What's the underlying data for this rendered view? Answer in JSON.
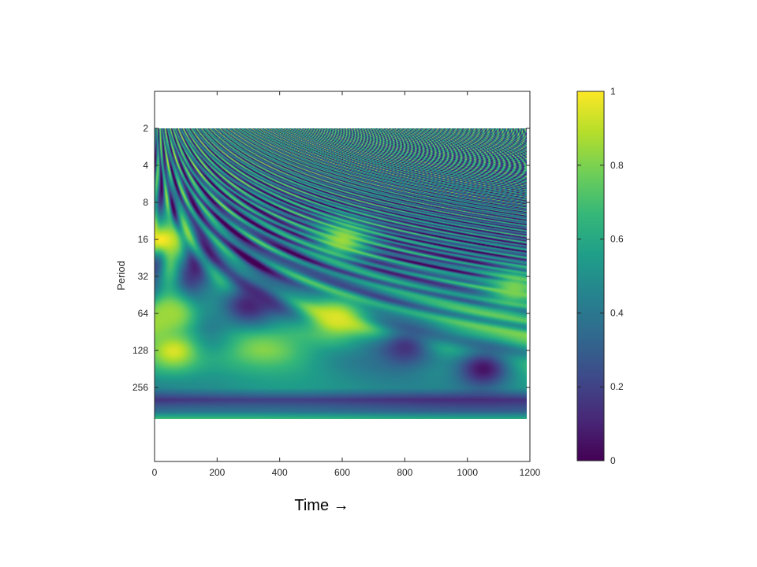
{
  "chart_data": {
    "type": "heatmap",
    "title": "",
    "xlabel": "Time →",
    "ylabel": "Period",
    "xlim": [
      0,
      1200
    ],
    "x_data_max": 1190,
    "x_ticks": [
      0,
      200,
      400,
      600,
      800,
      1000,
      1200
    ],
    "y_scale": "log2",
    "y_reversed": true,
    "y_ticks": [
      2,
      4,
      8,
      16,
      32,
      64,
      128,
      256
    ],
    "ylim": [
      1,
      1024
    ],
    "y_data_range": [
      2,
      464
    ],
    "colorbar": {
      "colormap": "viridis",
      "range": [
        0,
        1
      ],
      "ticks": [
        0,
        0.2,
        0.4,
        0.6,
        0.8,
        1
      ],
      "tick_labels": [
        "0",
        "0.2",
        "0.4",
        "0.6",
        "0.8",
        "1"
      ]
    },
    "colormap_stops": [
      "#440154",
      "#482878",
      "#3e4989",
      "#31688e",
      "#26828e",
      "#1f9e89",
      "#35b779",
      "#6ece58",
      "#b5de2b",
      "#fde725"
    ],
    "bands": [
      {
        "period": 2,
        "level": 0.45,
        "variability": 0.55
      },
      {
        "period": 3,
        "level": 0.42,
        "variability": 0.55
      },
      {
        "period": 4,
        "level": 0.4,
        "variability": 0.55
      },
      {
        "period": 6,
        "level": 0.38,
        "variability": 0.5
      },
      {
        "period": 8,
        "level": 0.35,
        "variability": 0.5
      },
      {
        "period": 12,
        "level": 0.33,
        "variability": 0.45
      },
      {
        "period": 16,
        "level": 0.32,
        "variability": 0.45
      },
      {
        "period": 24,
        "level": 0.3,
        "variability": 0.4
      },
      {
        "period": 32,
        "level": 0.38,
        "variability": 0.35
      },
      {
        "period": 48,
        "level": 0.45,
        "variability": 0.3
      },
      {
        "period": 64,
        "level": 0.55,
        "variability": 0.3
      },
      {
        "period": 96,
        "level": 0.62,
        "variability": 0.25
      },
      {
        "period": 128,
        "level": 0.58,
        "variability": 0.25
      },
      {
        "period": 192,
        "level": 0.55,
        "variability": 0.15
      },
      {
        "period": 256,
        "level": 0.5,
        "variability": 0.1
      },
      {
        "period": 320,
        "level": 0.15,
        "variability": 0.05
      },
      {
        "period": 400,
        "level": 0.35,
        "variability": 0.05
      },
      {
        "period": 464,
        "level": 0.7,
        "variability": 0.05
      }
    ],
    "highlights": [
      {
        "time": 20,
        "period": 16,
        "level": 1.0
      },
      {
        "time": 60,
        "period": 128,
        "level": 0.95
      },
      {
        "time": 580,
        "period": 70,
        "level": 0.95
      },
      {
        "time": 50,
        "period": 64,
        "level": 0.85
      },
      {
        "time": 1050,
        "period": 180,
        "level": 0.05
      },
      {
        "time": 800,
        "period": 120,
        "level": 0.15
      },
      {
        "time": 300,
        "period": 55,
        "level": 0.1
      },
      {
        "time": 600,
        "period": 16,
        "level": 0.85
      },
      {
        "time": 1150,
        "period": 40,
        "level": 0.8
      }
    ]
  }
}
